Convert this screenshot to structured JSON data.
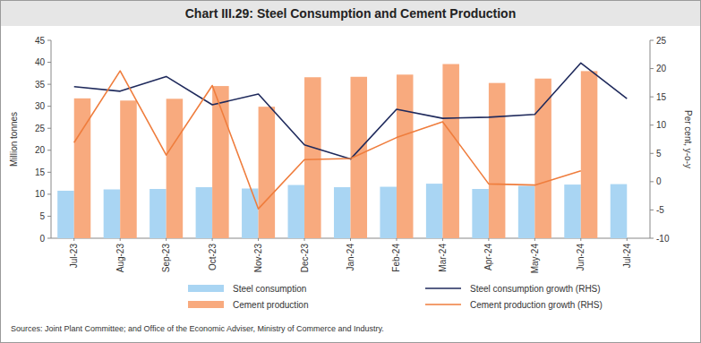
{
  "chart_data": {
    "type": "bar",
    "title": "Chart III.29: Steel Consumption and Cement Production",
    "y_label": "Million tonnes",
    "y2_label": "Per cent, y-o-y",
    "source": "Sources: Joint Plant Committee; and Office of the Economic Adviser, Ministry of Commerce and Industry.",
    "categories": [
      "Jul-23",
      "Aug-23",
      "Sep-23",
      "Oct-23",
      "Nov-23",
      "Dec-23",
      "Jan-24",
      "Feb-24",
      "Mar-24",
      "Apr-24",
      "May-24",
      "Jun-24",
      "Jul-24"
    ],
    "series": [
      {
        "name": "Steel consumption",
        "type": "bar",
        "color": "#a9d5f3",
        "values": [
          10.8,
          11.1,
          11.2,
          11.6,
          11.3,
          12.1,
          11.6,
          11.7,
          12.4,
          11.2,
          11.9,
          12.2,
          12.3
        ]
      },
      {
        "name": "Cement production",
        "type": "bar",
        "color": "#f8aa7e",
        "values": [
          31.8,
          31.3,
          31.7,
          34.6,
          29.9,
          36.6,
          36.7,
          37.2,
          39.6,
          35.3,
          36.3,
          38.0,
          null
        ]
      },
      {
        "name": "Steel consumption growth (RHS)",
        "type": "line",
        "axis": "y2",
        "color": "#1f2a5c",
        "values": [
          16.8,
          16.0,
          18.6,
          13.6,
          15.5,
          6.5,
          4.0,
          12.8,
          11.2,
          11.4,
          11.9,
          21.0,
          14.7
        ]
      },
      {
        "name": "Cement production growth (RHS)",
        "type": "line",
        "axis": "y2",
        "color": "#ef7d3d",
        "values": [
          6.9,
          19.6,
          4.7,
          17.0,
          -4.8,
          3.9,
          4.1,
          7.8,
          10.6,
          -0.4,
          -0.6,
          1.9,
          null
        ]
      }
    ],
    "ylim": [
      0,
      45
    ],
    "yticks": [
      0,
      5,
      10,
      15,
      20,
      25,
      30,
      35,
      40,
      45
    ],
    "y2lim": [
      -10,
      25
    ],
    "y2ticks": [
      -10,
      -5,
      0,
      5,
      10,
      15,
      20,
      25
    ],
    "grid": false,
    "legend": "bottom"
  }
}
